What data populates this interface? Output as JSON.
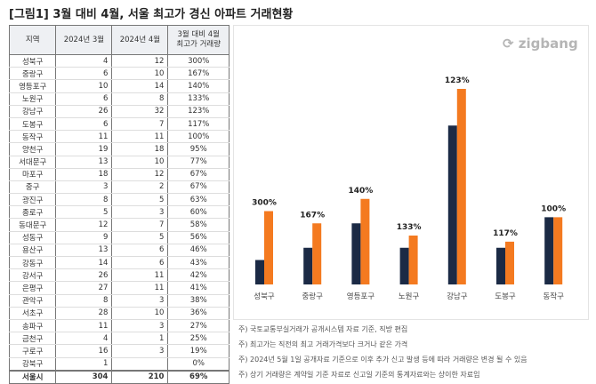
{
  "title": "[그림1] 3월 대비 4월, 서울 최고가 경신 아파트 거래현황",
  "table": {
    "headers": [
      "지역",
      "2024년 3월",
      "2024년 4월",
      "3월 대비 4월\n최고가 거래량"
    ],
    "rows": [
      [
        "성북구",
        "4",
        "12",
        "300%"
      ],
      [
        "중랑구",
        "6",
        "10",
        "167%"
      ],
      [
        "영등포구",
        "10",
        "14",
        "140%"
      ],
      [
        "노원구",
        "6",
        "8",
        "133%"
      ],
      [
        "강남구",
        "26",
        "32",
        "123%"
      ],
      [
        "도봉구",
        "6",
        "7",
        "117%"
      ],
      [
        "동작구",
        "11",
        "11",
        "100%"
      ],
      [
        "양천구",
        "19",
        "18",
        "95%"
      ],
      [
        "서대문구",
        "13",
        "10",
        "77%"
      ],
      [
        "마포구",
        "18",
        "12",
        "67%"
      ],
      [
        "중구",
        "3",
        "2",
        "67%"
      ],
      [
        "광진구",
        "8",
        "5",
        "63%"
      ],
      [
        "종로구",
        "5",
        "3",
        "60%"
      ],
      [
        "동대문구",
        "12",
        "7",
        "58%"
      ],
      [
        "성동구",
        "9",
        "5",
        "56%"
      ],
      [
        "용산구",
        "13",
        "6",
        "46%"
      ],
      [
        "강동구",
        "14",
        "6",
        "43%"
      ],
      [
        "강서구",
        "26",
        "11",
        "42%"
      ],
      [
        "은평구",
        "27",
        "11",
        "41%"
      ],
      [
        "관악구",
        "8",
        "3",
        "38%"
      ],
      [
        "서초구",
        "28",
        "10",
        "36%"
      ],
      [
        "송파구",
        "11",
        "3",
        "27%"
      ],
      [
        "금천구",
        "4",
        "1",
        "25%"
      ],
      [
        "구로구",
        "16",
        "3",
        "19%"
      ],
      [
        "강북구",
        "1",
        "",
        "0%"
      ]
    ],
    "total": [
      "서울시",
      "304",
      "210",
      "69%"
    ]
  },
  "logo": "zigbang",
  "chart_data": {
    "type": "bar",
    "categories": [
      "성북구",
      "중랑구",
      "영등포구",
      "노원구",
      "강남구",
      "도봉구",
      "동작구"
    ],
    "series": [
      {
        "values": [
          4,
          6,
          10,
          6,
          26,
          6,
          11
        ],
        "color": "#1b2a45"
      },
      {
        "values": [
          12,
          10,
          14,
          8,
          32,
          7,
          11
        ],
        "color": "#f47a20"
      }
    ],
    "data_labels": [
      "300%",
      "167%",
      "140%",
      "133%",
      "123%",
      "117%",
      "100%"
    ],
    "ylim": [
      0,
      32
    ],
    "grid": false
  },
  "notes": [
    "주) 국토교통부실거래가 공개시스템 자료 기준, 직방 편집",
    "주) 최고가는 직전의 최고 거래가격보다 크거나 같은 가격",
    "주) 2024년 5월 1일 공개자료 기준으로 이후 추가 신고 발생 등에 따라 거래량은 변경 될 수 있음",
    "주) 상기 거래량은 계약일 기준 자료로 신고일 기준의  통계자료와는 상이한 자료임"
  ]
}
